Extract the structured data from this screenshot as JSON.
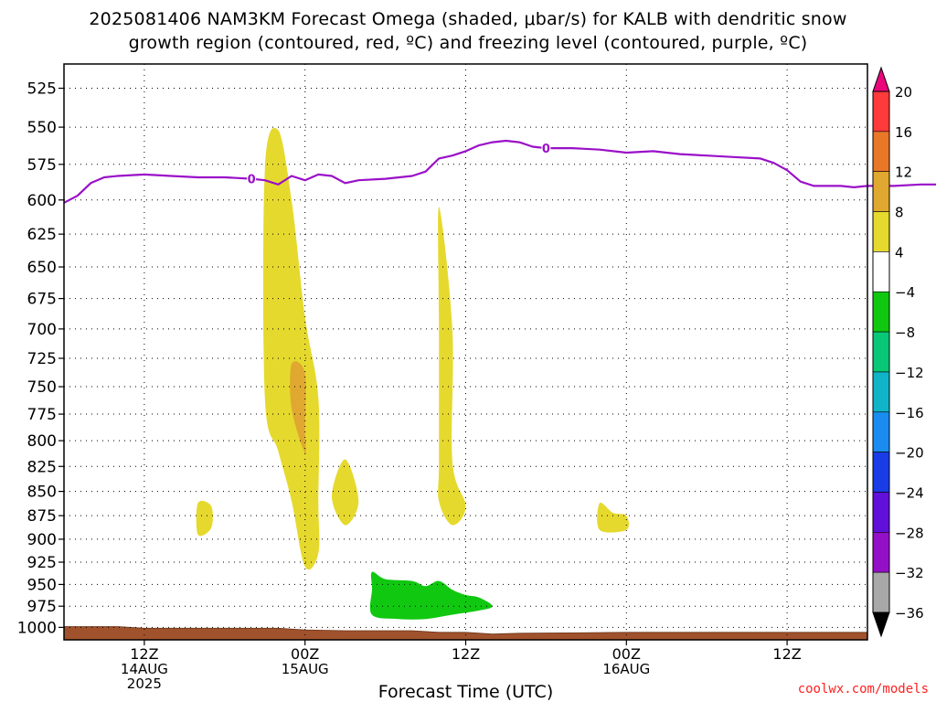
{
  "title": {
    "line1": "2025081406 NAM3KM Forecast Omega (shaded, μbar/s) for KALB with dendritic snow",
    "line2": "growth region (contoured, red, ºC) and freezing level (contoured, purple, ºC)"
  },
  "credit": "coolwx.com/models",
  "chart_data": {
    "type": "heatmap",
    "xlabel": "Forecast Time (UTC)",
    "x_ticks": [
      {
        "time": "2025-08-14 12Z",
        "lines": [
          "12Z",
          "14AUG",
          "2025"
        ]
      },
      {
        "time": "2025-08-15 00Z",
        "lines": [
          "00Z",
          "15AUG"
        ]
      },
      {
        "time": "2025-08-15 12Z",
        "lines": [
          "12Z"
        ]
      },
      {
        "time": "2025-08-16 00Z",
        "lines": [
          "00Z",
          "16AUG"
        ]
      },
      {
        "time": "2025-08-16 12Z",
        "lines": [
          "12Z"
        ]
      }
    ],
    "xlim": [
      "2025-08-14 06Z",
      "2025-08-16 18Z"
    ],
    "ylabel": "",
    "y_ticks_hpa": [
      525,
      550,
      575,
      600,
      625,
      650,
      675,
      700,
      725,
      750,
      775,
      800,
      825,
      850,
      875,
      900,
      925,
      950,
      975,
      1000
    ],
    "ylim_hpa": [
      1015,
      510
    ],
    "grid": true,
    "colorbar": {
      "units": "μbar/s",
      "labels": [
        "20",
        "16",
        "12",
        "8",
        "4",
        "−4",
        "−8",
        "−12",
        "−16",
        "−20",
        "−24",
        "−28",
        "−32",
        "−36"
      ],
      "bins": [
        {
          "from": 16,
          "to": 20,
          "color": "#ff3a3a"
        },
        {
          "from": 12,
          "to": 16,
          "color": "#e87828"
        },
        {
          "from": 8,
          "to": 12,
          "color": "#e0a830"
        },
        {
          "from": 4,
          "to": 8,
          "color": "#e6d92e"
        },
        {
          "from": -4,
          "to": 4,
          "color": "#ffffff"
        },
        {
          "from": -8,
          "to": -4,
          "color": "#10c810"
        },
        {
          "from": -12,
          "to": -8,
          "color": "#08c878"
        },
        {
          "from": -16,
          "to": -12,
          "color": "#10b4c8"
        },
        {
          "from": -20,
          "to": -16,
          "color": "#1a8cf0"
        },
        {
          "from": -24,
          "to": -20,
          "color": "#1a3ce6"
        },
        {
          "from": -28,
          "to": -24,
          "color": "#6010d8"
        },
        {
          "from": -32,
          "to": -28,
          "color": "#9410c8"
        },
        {
          "from": -36,
          "to": -32,
          "color": "#a8a8a8"
        }
      ],
      "over_color": "#e8087a",
      "under_color": "#000000"
    },
    "freezing_level": {
      "color": "#9a10c8",
      "contour_label": "0",
      "label_times": [
        "2025-08-14 20Z",
        "2025-08-15 18Z"
      ],
      "points": [
        [
          "2025-08-14 06Z",
          602
        ],
        [
          "2025-08-14 07Z",
          597
        ],
        [
          "2025-08-14 08Z",
          588
        ],
        [
          "2025-08-14 09Z",
          584
        ],
        [
          "2025-08-14 10Z",
          583
        ],
        [
          "2025-08-14 12Z",
          582
        ],
        [
          "2025-08-14 14Z",
          583
        ],
        [
          "2025-08-14 16Z",
          584
        ],
        [
          "2025-08-14 18Z",
          584
        ],
        [
          "2025-08-14 20Z",
          585
        ],
        [
          "2025-08-14 21Z",
          586
        ],
        [
          "2025-08-14 22Z",
          589
        ],
        [
          "2025-08-14 23Z",
          583
        ],
        [
          "2025-08-15 00Z",
          586
        ],
        [
          "2025-08-15 01Z",
          582
        ],
        [
          "2025-08-15 02Z",
          583
        ],
        [
          "2025-08-15 03Z",
          588
        ],
        [
          "2025-08-15 04Z",
          586
        ],
        [
          "2025-08-15 06Z",
          585
        ],
        [
          "2025-08-15 08Z",
          583
        ],
        [
          "2025-08-15 09Z",
          580
        ],
        [
          "2025-08-15 10Z",
          571
        ],
        [
          "2025-08-15 11Z",
          569
        ],
        [
          "2025-08-15 12Z",
          566
        ],
        [
          "2025-08-15 13Z",
          562
        ],
        [
          "2025-08-15 14Z",
          560
        ],
        [
          "2025-08-15 15Z",
          559
        ],
        [
          "2025-08-15 16Z",
          560
        ],
        [
          "2025-08-15 17Z",
          563
        ],
        [
          "2025-08-15 18Z",
          564
        ],
        [
          "2025-08-15 20Z",
          564
        ],
        [
          "2025-08-15 22Z",
          565
        ],
        [
          "2025-08-16 00Z",
          567
        ],
        [
          "2025-08-16 02Z",
          566
        ],
        [
          "2025-08-16 04Z",
          568
        ],
        [
          "2025-08-16 06Z",
          569
        ],
        [
          "2025-08-16 08Z",
          570
        ],
        [
          "2025-08-16 10Z",
          571
        ],
        [
          "2025-08-16 11Z",
          574
        ],
        [
          "2025-08-16 12Z",
          579
        ],
        [
          "2025-08-16 13Z",
          587
        ],
        [
          "2025-08-16 14Z",
          590
        ],
        [
          "2025-08-16 16Z",
          590
        ],
        [
          "2025-08-16 17Z",
          591
        ],
        [
          "2025-08-16 18Z",
          590
        ],
        [
          "2025-08-16 20Z",
          590
        ],
        [
          "2025-08-16 22Z",
          589
        ],
        [
          "2025-08-17 00Z",
          589
        ],
        [
          "2025-08-17 02Z",
          589
        ],
        [
          "2025-08-17 04Z",
          588
        ],
        [
          "2025-08-17 06Z",
          586
        ],
        [
          "2025-08-17 08Z",
          586
        ],
        [
          "2025-08-17 10Z",
          590
        ],
        [
          "2025-08-17 11Z",
          595
        ]
      ]
    },
    "omega_regions": [
      {
        "bin": "4 to 8",
        "color": "#e6d92e",
        "points": [
          [
            "2025-08-14 21Z",
            578
          ],
          [
            "2025-08-14 22Z",
            552
          ],
          [
            "2025-08-14 23Z",
            600
          ],
          [
            "2025-08-15 00Z",
            690
          ],
          [
            "2025-08-15 01Z",
            760
          ],
          [
            "2025-08-15 01Z",
            860
          ],
          [
            "2025-08-15 01Z",
            915
          ],
          [
            "2025-08-15 00Z",
            930
          ],
          [
            "2025-08-14 23Z",
            860
          ],
          [
            "2025-08-14 22Z",
            810
          ],
          [
            "2025-08-14 21Z",
            760
          ]
        ]
      },
      {
        "bin": "8 to 12",
        "color": "#e0a830",
        "points": [
          [
            "2025-08-14 23Z",
            730
          ],
          [
            "2025-08-15 00Z",
            738
          ],
          [
            "2025-08-15 00Z",
            790
          ],
          [
            "2025-08-15 00Z",
            812
          ],
          [
            "2025-08-14 23Z",
            770
          ]
        ]
      },
      {
        "bin": "4 to 8",
        "color": "#e6d92e",
        "points": [
          [
            "2025-08-14 16Z",
            862
          ],
          [
            "2025-08-14 17Z",
            865
          ],
          [
            "2025-08-14 17Z",
            888
          ],
          [
            "2025-08-14 16Z",
            895
          ]
        ]
      },
      {
        "bin": "4 to 8",
        "color": "#e6d92e",
        "points": [
          [
            "2025-08-15 03Z",
            818
          ],
          [
            "2025-08-15 04Z",
            860
          ],
          [
            "2025-08-15 03Z",
            885
          ],
          [
            "2025-08-15 02Z",
            855
          ]
        ]
      },
      {
        "bin": "4 to 8",
        "color": "#e6d92e",
        "points": [
          [
            "2025-08-15 10Z",
            605
          ],
          [
            "2025-08-15 11Z",
            700
          ],
          [
            "2025-08-15 11Z",
            820
          ],
          [
            "2025-08-15 12Z",
            865
          ],
          [
            "2025-08-15 11Z",
            885
          ],
          [
            "2025-08-15 10Z",
            860
          ],
          [
            "2025-08-15 10Z",
            820
          ],
          [
            "2025-08-15 10Z",
            700
          ]
        ]
      },
      {
        "bin": "4 to 8",
        "color": "#e6d92e",
        "points": [
          [
            "2025-08-15 22Z",
            862
          ],
          [
            "2025-08-15 23Z",
            872
          ],
          [
            "2025-08-16 00Z",
            875
          ],
          [
            "2025-08-16 00Z",
            890
          ],
          [
            "2025-08-15 22Z",
            890
          ]
        ]
      },
      {
        "bin": "-8 to -4",
        "color": "#10c810",
        "points": [
          [
            "2025-08-15 05Z",
            936
          ],
          [
            "2025-08-15 06Z",
            944
          ],
          [
            "2025-08-15 08Z",
            946
          ],
          [
            "2025-08-15 09Z",
            952
          ],
          [
            "2025-08-15 10Z",
            946
          ],
          [
            "2025-08-15 11Z",
            956
          ],
          [
            "2025-08-15 12Z",
            962
          ],
          [
            "2025-08-15 13Z",
            965
          ],
          [
            "2025-08-15 14Z",
            975
          ],
          [
            "2025-08-15 13Z",
            980
          ],
          [
            "2025-08-15 11Z",
            985
          ],
          [
            "2025-08-15 09Z",
            990
          ],
          [
            "2025-08-15 07Z",
            990
          ],
          [
            "2025-08-15 05Z",
            985
          ],
          [
            "2025-08-15 05Z",
            955
          ]
        ]
      },
      {
        "bin": "-8 to -4",
        "color": "#10c810",
        "points": [
          [
            "2025-08-17 11Z",
            620
          ],
          [
            "2025-08-17 11Z",
            830
          ],
          [
            "2025-08-17 10Z",
            800
          ],
          [
            "2025-08-17 10Z",
            700
          ]
        ]
      },
      {
        "bin": "-12 to -8",
        "color": "#08c878",
        "points": [
          [
            "2025-08-17 11Z",
            660
          ],
          [
            "2025-08-17 11Z",
            800
          ],
          [
            "2025-08-17 11Z",
            760
          ],
          [
            "2025-08-17 11Z",
            720
          ]
        ]
      },
      {
        "bin": "-16 to -12",
        "color": "#10b4c8",
        "points": [
          [
            "2025-08-17 11Z",
            700
          ],
          [
            "2025-08-17 11Z",
            780
          ],
          [
            "2025-08-17 11Z",
            760
          ]
        ]
      }
    ],
    "terrain": {
      "color": "#a0522d",
      "surface": [
        [
          "2025-08-14 06Z",
          999
        ],
        [
          "2025-08-14 10Z",
          999
        ],
        [
          "2025-08-14 12Z",
          1001
        ],
        [
          "2025-08-14 16Z",
          1001
        ],
        [
          "2025-08-14 22Z",
          1001
        ],
        [
          "2025-08-15 00Z",
          1003
        ],
        [
          "2025-08-15 03Z",
          1004
        ],
        [
          "2025-08-15 08Z",
          1004
        ],
        [
          "2025-08-15 10Z",
          1006
        ],
        [
          "2025-08-15 12Z",
          1006
        ],
        [
          "2025-08-15 14Z",
          1008
        ],
        [
          "2025-08-15 16Z",
          1007
        ],
        [
          "2025-08-16 00Z",
          1006
        ],
        [
          "2025-08-16 12Z",
          1006
        ],
        [
          "2025-08-17 00Z",
          1006
        ],
        [
          "2025-08-17 09Z",
          1005
        ],
        [
          "2025-08-17 11Z",
          1002
        ]
      ]
    }
  }
}
